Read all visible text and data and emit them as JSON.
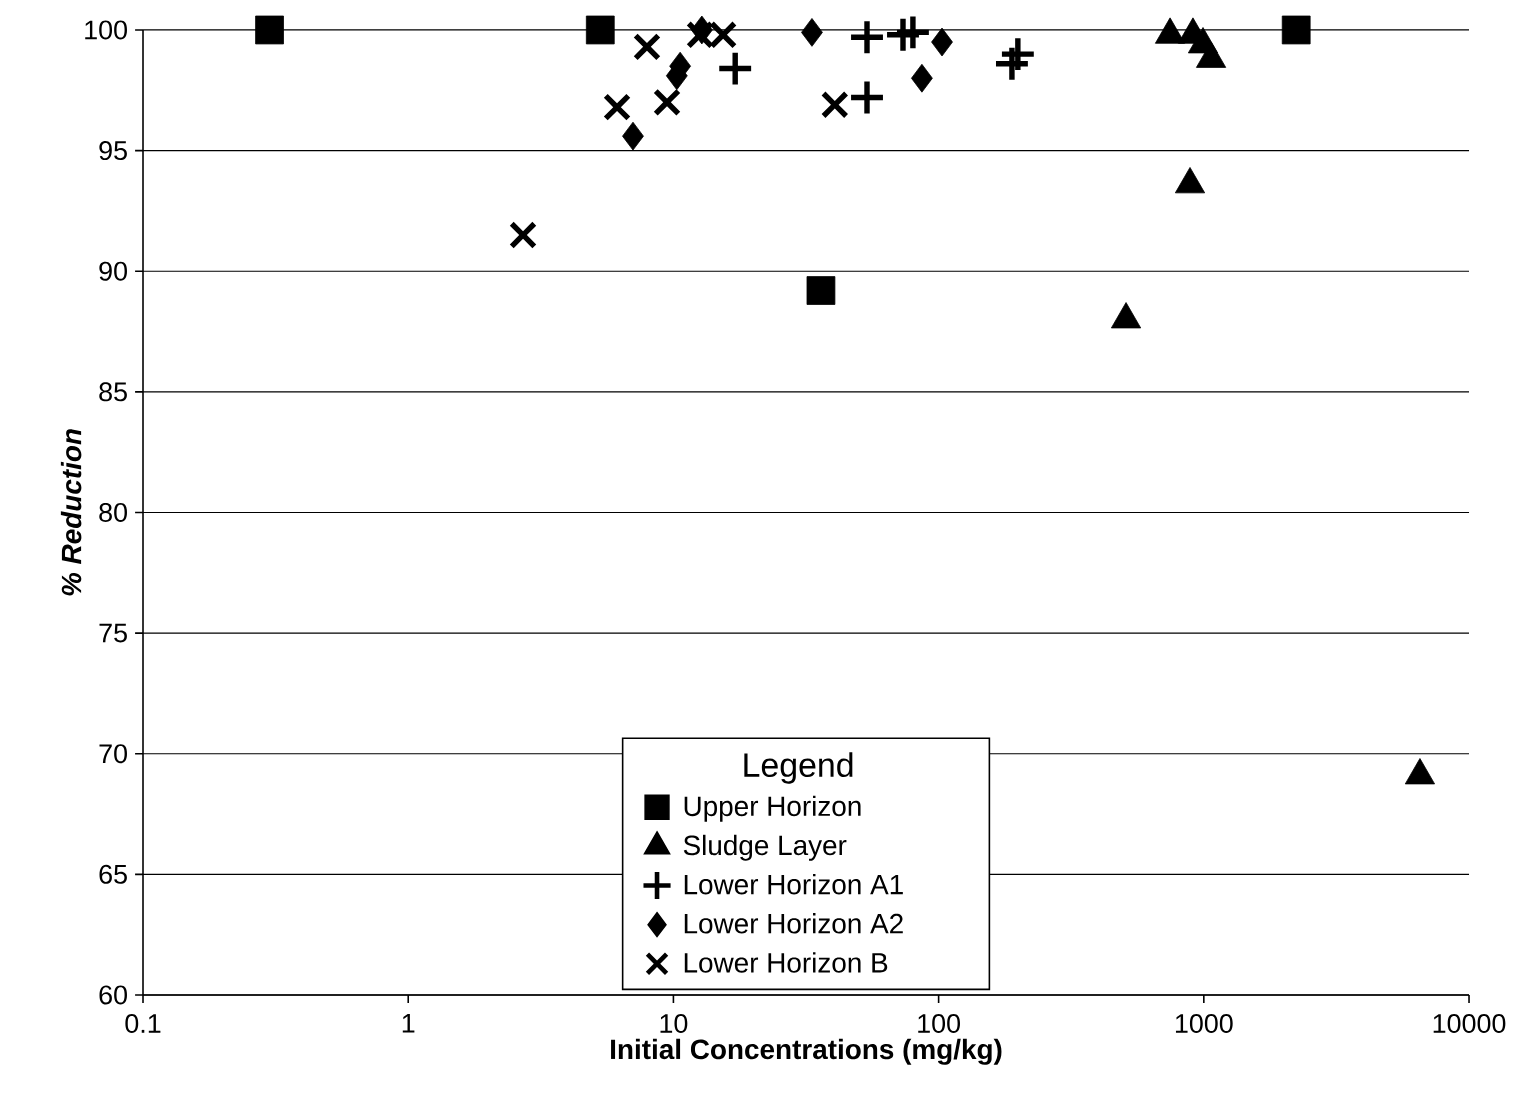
{
  "chart_data": {
    "type": "scatter",
    "xlabel": "Initial Concentrations (mg/kg)",
    "ylabel": "% Reduction",
    "legend_title": "Legend",
    "legend": "bottom",
    "log": "x",
    "grid": "y",
    "xlim": [
      0.1,
      10000
    ],
    "xticks": [
      0.1,
      1,
      10,
      100,
      1000,
      10000
    ],
    "ylim": [
      60,
      100
    ],
    "yticks": [
      60,
      65,
      70,
      75,
      80,
      85,
      90,
      95,
      100
    ],
    "series": [
      {
        "name": "Upper Horizon",
        "color": "#000000",
        "marker": "square",
        "x": [
          0.3,
          5.3,
          36,
          2230
        ],
        "values": [
          100,
          100,
          89.2,
          100
        ]
      },
      {
        "name": "Sludge Layer",
        "color": "#000000",
        "marker": "triangle",
        "x": [
          746,
          910,
          993,
          1065,
          887,
          509,
          6530
        ],
        "values": [
          99.8,
          99.8,
          99.4,
          98.8,
          93.6,
          88.0,
          69.1
        ]
      },
      {
        "name": "Lower Horizon A1",
        "color": "#000000",
        "marker": "cross",
        "x": [
          17.1,
          53.7,
          53.7,
          73.4,
          80,
          189,
          199
        ],
        "values": [
          98.4,
          99.7,
          97.2,
          99.8,
          99.9,
          98.6,
          99.0
        ]
      },
      {
        "name": "Lower Horizon A2",
        "color": "#000000",
        "marker": "diamond",
        "x": [
          7.04,
          10.3,
          10.6,
          12.8,
          33.3,
          103,
          86.5
        ],
        "values": [
          95.6,
          98.1,
          98.5,
          100.0,
          99.9,
          99.5,
          98.0
        ]
      },
      {
        "name": "Lower Horizon B",
        "color": "#000000",
        "marker": "x",
        "x": [
          2.71,
          7.95,
          6.13,
          9.46,
          12.6,
          15.4,
          40.6
        ],
        "values": [
          91.5,
          99.3,
          96.8,
          97.0,
          99.8,
          99.8,
          96.9
        ]
      }
    ]
  }
}
